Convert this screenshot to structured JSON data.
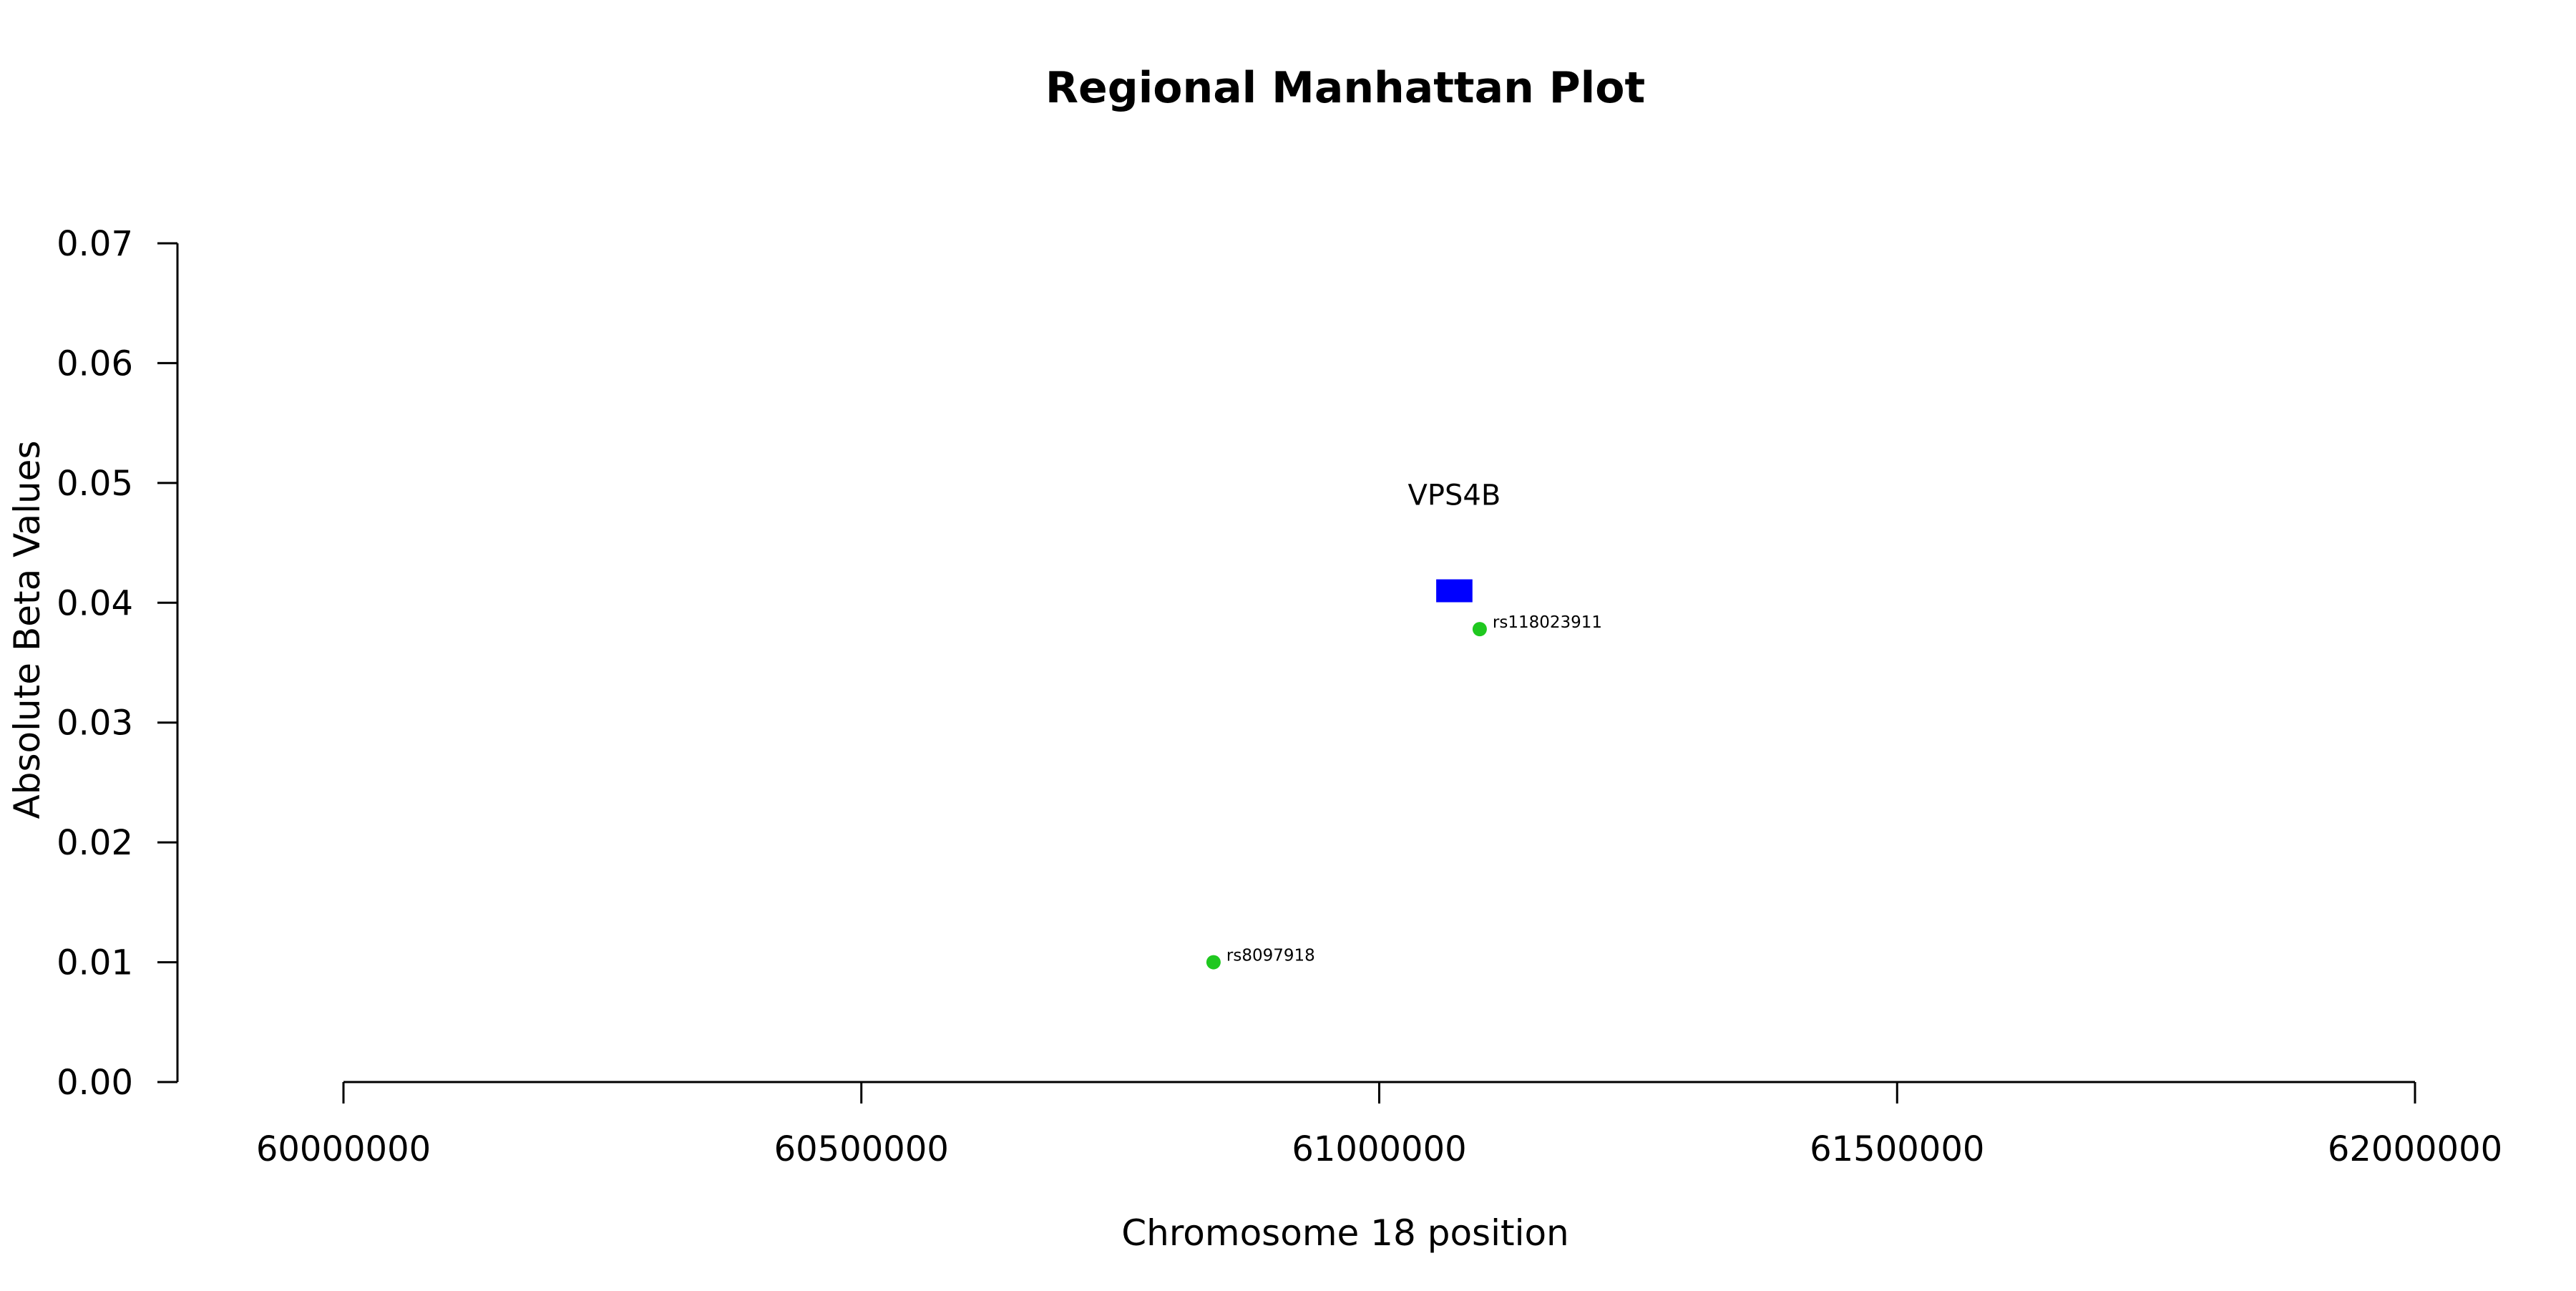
{
  "chart_data": {
    "type": "scatter",
    "title": "Regional Manhattan Plot",
    "xlabel": "Chromosome 18 position",
    "ylabel": "Absolute Beta Values",
    "xlim": [
      60000000,
      62000000
    ],
    "ylim": [
      0,
      0.07
    ],
    "x_ticks": [
      60000000,
      60500000,
      61000000,
      61500000,
      62000000
    ],
    "x_tick_labels": [
      "60000000",
      "60500000",
      "61000000",
      "61500000",
      "62000000"
    ],
    "y_ticks": [
      0,
      0.01,
      0.02,
      0.03,
      0.04,
      0.05,
      0.06,
      0.07
    ],
    "y_tick_labels": [
      "0.00",
      "0.01",
      "0.02",
      "0.03",
      "0.04",
      "0.05",
      "0.06",
      "0.07"
    ],
    "grid": false,
    "points": [
      {
        "label": "rs8097918",
        "x": 60840000,
        "y": 0.01,
        "color": "#1fc81f"
      },
      {
        "label": "rs118023911",
        "x": 61097000,
        "y": 0.0378,
        "color": "#1fc81f"
      }
    ],
    "genes": [
      {
        "label": "VPS4B",
        "start": 61055000,
        "end": 61090000,
        "y": 0.041,
        "color": "#0000ff"
      }
    ]
  }
}
